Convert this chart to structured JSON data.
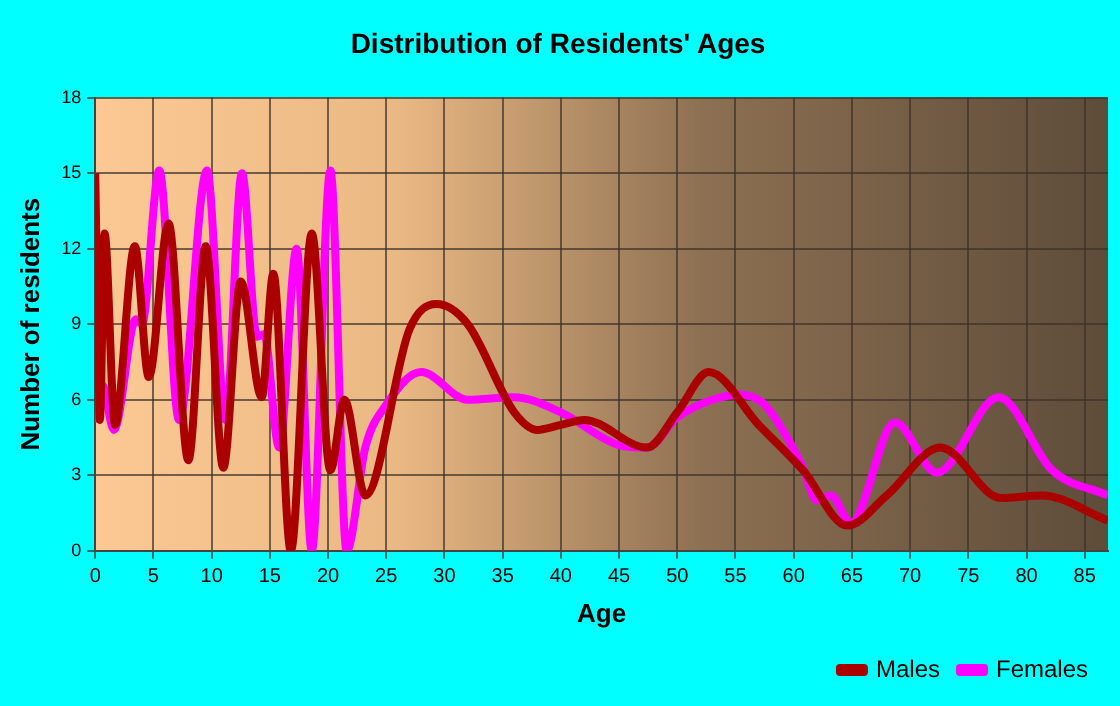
{
  "chart_data": {
    "type": "line",
    "title": "Distribution of Residents' Ages",
    "xlabel": "Age",
    "ylabel": "Number of residents",
    "xlim": [
      0,
      87
    ],
    "xticks": [
      0,
      5,
      10,
      15,
      20,
      25,
      30,
      35,
      40,
      45,
      50,
      55,
      60,
      65,
      70,
      75,
      80,
      85
    ],
    "ylim": [
      0,
      18
    ],
    "yticks": [
      0,
      3,
      6,
      9,
      12,
      15,
      18
    ],
    "grid": true,
    "legend": "bottom right",
    "marker": "none",
    "line_style": "solid",
    "series": [
      {
        "name": "Males",
        "color": "#aa0000",
        "x": [
          0,
          0.4,
          0.8,
          1.7,
          3.4,
          4.6,
          6.3,
          8,
          9.5,
          11,
          12.5,
          14.3,
          15.3,
          16.8,
          18.6,
          20.2,
          21.4,
          23.2,
          27,
          29.3,
          32,
          36,
          38,
          40,
          42,
          47.4,
          50,
          52.7,
          57,
          60.8,
          64.6,
          68,
          72.6,
          77.8,
          81.3,
          87
        ],
        "values": [
          15,
          5.2,
          12.6,
          5,
          12.1,
          6.9,
          13,
          3.6,
          12.1,
          3.3,
          10.7,
          6.1,
          11,
          0,
          12.6,
          3.2,
          6,
          2.2,
          8.8,
          9.8,
          9,
          5.5,
          4.8,
          5,
          5.2,
          4.1,
          5.5,
          7.1,
          5,
          3.2,
          1,
          2.2,
          4.1,
          2.1,
          2.2,
          1.2
        ]
      },
      {
        "name": "Females",
        "color": "#ff00ff",
        "x": [
          0,
          0.6,
          1.6,
          3.5,
          4,
          5.5,
          7.2,
          9.6,
          11.2,
          12.6,
          13.9,
          14.5,
          15.8,
          17.3,
          18.6,
          20.2,
          21.6,
          23.2,
          25,
          28,
          32,
          36,
          40,
          45,
          47.4,
          50,
          53,
          55.4,
          57.5,
          60.7,
          62,
          63.2,
          64.9,
          68.7,
          72.3,
          77.6,
          82.2,
          87
        ],
        "values": [
          5.1,
          6.6,
          4.8,
          9.2,
          9,
          15.1,
          5.2,
          15.1,
          5.2,
          15,
          8.5,
          8.6,
          4.1,
          12,
          0,
          15.1,
          0,
          4.1,
          5.8,
          7.1,
          6,
          6.1,
          5.5,
          4.2,
          4.1,
          5.3,
          6,
          6.2,
          5.8,
          3.4,
          2,
          2.2,
          1.1,
          5.1,
          3.1,
          6.1,
          3.2,
          2.2
        ]
      }
    ]
  }
}
